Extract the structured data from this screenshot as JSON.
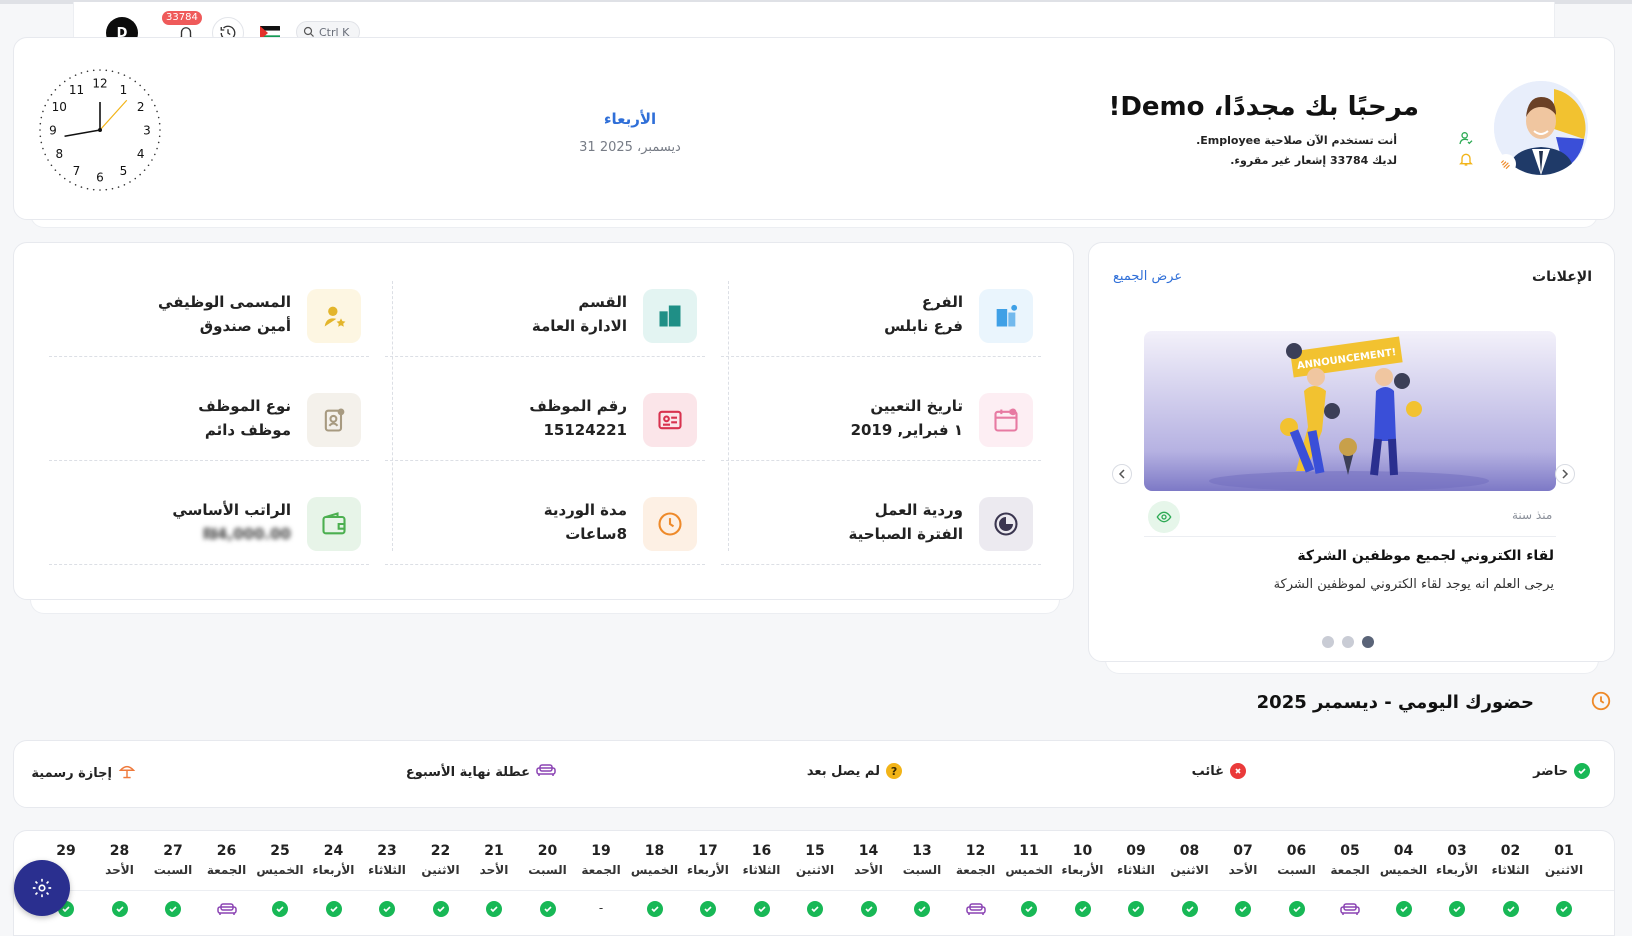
{
  "header": {
    "user_initial": "D",
    "notifications_count": "33784",
    "search_shortcut": "Ctrl K"
  },
  "welcome": {
    "title": "مرحبًا بك مجددًا، Demo!",
    "permission_line": "أنت تستخدم الآن صلاحية Employee.",
    "notifications_line": "لديك 33784 إشعار غير مقروء.",
    "day_name": "الأربعاء",
    "date": "31 ديسمبر، 2025"
  },
  "clock": {
    "numbers": [
      "12",
      "1",
      "2",
      "3",
      "4",
      "5",
      "6",
      "7",
      "8",
      "9",
      "10",
      "11"
    ]
  },
  "info": {
    "items": [
      {
        "label": "الفرع",
        "value": "فرع نابلس",
        "icon": "building-icon",
        "color": "#3fa0e6",
        "bg": "#eaf5fd"
      },
      {
        "label": "القسم",
        "value": "الادارة العامة",
        "icon": "department-icon",
        "color": "#1f8f86",
        "bg": "#e3f4f2"
      },
      {
        "label": "المسمى الوظيفي",
        "value": "أمين صندوق",
        "icon": "user-star-icon",
        "color": "#e3b52b",
        "bg": "#fdf6e2"
      },
      {
        "label": "تاريخ التعيين",
        "value": "١ فبراير, 2019",
        "icon": "calendar-icon",
        "color": "#e77aa2",
        "bg": "#fdeef3"
      },
      {
        "label": "رقم الموظف",
        "value": "15124221",
        "icon": "id-card-icon",
        "color": "#d8324f",
        "bg": "#fbe5e9"
      },
      {
        "label": "نوع الموظف",
        "value": "موظف دائم",
        "icon": "employee-badge-icon",
        "color": "#a79a80",
        "bg": "#f4f1eb"
      },
      {
        "label": "وردية العمل",
        "value": "الفترة الصباحية",
        "icon": "shift-icon",
        "color": "#3b3650",
        "bg": "#eceaf0"
      },
      {
        "label": "مدة الوردية",
        "value": "8ساعات",
        "icon": "clock-icon",
        "color": "#ee8a2a",
        "bg": "#fdf0e4"
      },
      {
        "label": "الراتب الأساسي",
        "value": "₪4,000.00",
        "icon": "wallet-icon",
        "color": "#4caf50",
        "bg": "#e7f4e8"
      }
    ]
  },
  "announcements": {
    "title": "الإعلانات",
    "view_all": "عرض الجميع",
    "image_text": "ANNOUNCEMENT!",
    "since": "منذ سنة",
    "headline": "لقاء الكتروني لجميع موظفين الشركة",
    "body": "يرجى العلم انه يوجد لقاء الكتروني لموظفين الشركة"
  },
  "attendance": {
    "title": "حضورك اليومي - ديسمبر 2025",
    "legend": {
      "present": "حاضر",
      "absent": "غائب",
      "not_arrived": "لم يصل بعد",
      "weekend": "عطلة نهاية الأسبوع",
      "holiday": "إجازة رسمية"
    },
    "days": [
      {
        "num": "01",
        "name": "الاثنين",
        "status": "present"
      },
      {
        "num": "02",
        "name": "الثلاثاء",
        "status": "present"
      },
      {
        "num": "03",
        "name": "الأربعاء",
        "status": "present"
      },
      {
        "num": "04",
        "name": "الخميس",
        "status": "present"
      },
      {
        "num": "05",
        "name": "الجمعة",
        "status": "weekend"
      },
      {
        "num": "06",
        "name": "السبت",
        "status": "present"
      },
      {
        "num": "07",
        "name": "الأحد",
        "status": "present"
      },
      {
        "num": "08",
        "name": "الاثنين",
        "status": "present"
      },
      {
        "num": "09",
        "name": "الثلاثاء",
        "status": "present"
      },
      {
        "num": "10",
        "name": "الأربعاء",
        "status": "present"
      },
      {
        "num": "11",
        "name": "الخميس",
        "status": "present"
      },
      {
        "num": "12",
        "name": "الجمعة",
        "status": "weekend"
      },
      {
        "num": "13",
        "name": "السبت",
        "status": "present"
      },
      {
        "num": "14",
        "name": "الأحد",
        "status": "present"
      },
      {
        "num": "15",
        "name": "الاثنين",
        "status": "present"
      },
      {
        "num": "16",
        "name": "الثلاثاء",
        "status": "present"
      },
      {
        "num": "17",
        "name": "الأربعاء",
        "status": "present"
      },
      {
        "num": "18",
        "name": "الخميس",
        "status": "present"
      },
      {
        "num": "19",
        "name": "الجمعة",
        "status": "none"
      },
      {
        "num": "20",
        "name": "السبت",
        "status": "present"
      },
      {
        "num": "21",
        "name": "الأحد",
        "status": "present"
      },
      {
        "num": "22",
        "name": "الاثنين",
        "status": "present"
      },
      {
        "num": "23",
        "name": "الثلاثاء",
        "status": "present"
      },
      {
        "num": "24",
        "name": "الأربعاء",
        "status": "present"
      },
      {
        "num": "25",
        "name": "الخميس",
        "status": "present"
      },
      {
        "num": "26",
        "name": "الجمعة",
        "status": "weekend"
      },
      {
        "num": "27",
        "name": "السبت",
        "status": "present"
      },
      {
        "num": "28",
        "name": "الأحد",
        "status": "present"
      },
      {
        "num": "29",
        "name": "",
        "status": "present"
      }
    ],
    "none_mark": "-"
  },
  "colors": {
    "accent": "#2f6fd8",
    "present": "#18b856",
    "absent": "#ea3a3a",
    "not_arrived": "#f2b418",
    "weekend": "#8b44b4",
    "holiday": "#ef7a3c"
  }
}
